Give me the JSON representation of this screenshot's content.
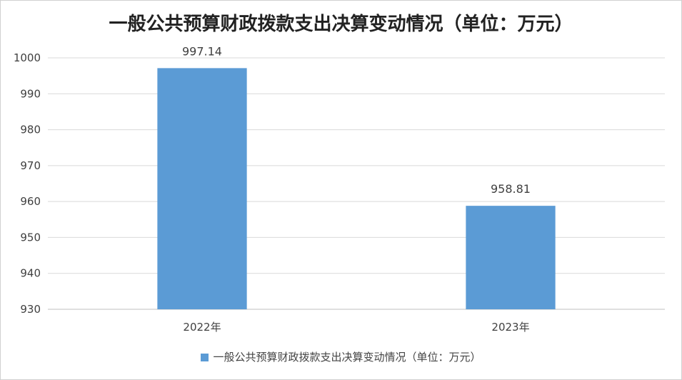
{
  "chart_data": {
    "type": "bar",
    "title": "一般公共预算财政拨款支出决算变动情况（单位：万元）",
    "categories": [
      "2022年",
      "2023年"
    ],
    "series": [
      {
        "name": "一般公共预算财政拨款支出决算变动情况（单位：万元）",
        "values": [
          997.14,
          958.81
        ],
        "data_labels": [
          "997.14",
          "958.81"
        ]
      }
    ],
    "ylim": [
      930,
      1000
    ],
    "ytick_step": 10,
    "yticks": [
      "930",
      "940",
      "950",
      "960",
      "970",
      "980",
      "990",
      "1000"
    ],
    "grid": true,
    "legend_position": "bottom",
    "colors": {
      "bar": "#5b9bd5",
      "grid": "#d9d9d9",
      "axis": "#bfbfbf",
      "text": "#404040"
    }
  }
}
